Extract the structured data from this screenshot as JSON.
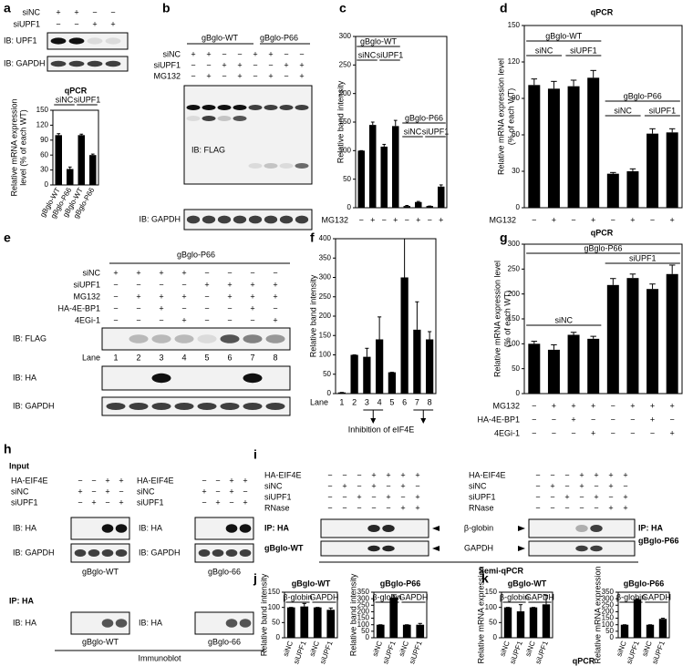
{
  "panel_letters": [
    "a",
    "b",
    "c",
    "d",
    "e",
    "f",
    "g",
    "h",
    "i",
    "j",
    "k"
  ],
  "a": {
    "rows": [
      {
        "label": "siNC",
        "signs": [
          "+",
          "+",
          "−",
          "−"
        ]
      },
      {
        "label": "siUPF1",
        "signs": [
          "−",
          "−",
          "+",
          "+"
        ]
      }
    ],
    "ib": [
      "IB: UPF1",
      "IB: GAPDH"
    ]
  },
  "b": {
    "groups": [
      "gBglo-WT",
      "gBglo-P66"
    ],
    "rows": [
      {
        "label": "siNC",
        "signs": [
          "+",
          "+",
          "−",
          "−",
          "+",
          "+",
          "−",
          "−"
        ]
      },
      {
        "label": "siUPF1",
        "signs": [
          "−",
          "−",
          "+",
          "+",
          "−",
          "−",
          "+",
          "+"
        ]
      },
      {
        "label": "MG132",
        "signs": [
          "−",
          "+",
          "−",
          "+",
          "−",
          "+",
          "−",
          "+"
        ]
      }
    ],
    "ib": [
      "IB: FLAG",
      "IB: GAPDH"
    ]
  },
  "e": {
    "title": "gBglo-P66",
    "rows": [
      {
        "label": "siNC",
        "signs": [
          "+",
          "+",
          "+",
          "+",
          "−",
          "−",
          "−",
          "−"
        ]
      },
      {
        "label": "siUPF1",
        "signs": [
          "−",
          "−",
          "−",
          "−",
          "+",
          "+",
          "+",
          "+"
        ]
      },
      {
        "label": "MG132",
        "signs": [
          "−",
          "+",
          "+",
          "+",
          "−",
          "+",
          "+",
          "+"
        ]
      },
      {
        "label": "HA-4E-BP1",
        "signs": [
          "−",
          "−",
          "+",
          "−",
          "−",
          "−",
          "+",
          "−"
        ]
      },
      {
        "label": "4EGi-1",
        "signs": [
          "−",
          "−",
          "−",
          "+",
          "−",
          "−",
          "−",
          "+"
        ]
      }
    ],
    "lane_label": "Lane",
    "lanes": [
      "1",
      "2",
      "3",
      "4",
      "5",
      "6",
      "7",
      "8"
    ],
    "ib": [
      "IB: FLAG",
      "IB: HA",
      "IB: GAPDH"
    ]
  },
  "h": {
    "input": "Input",
    "tables": [
      {
        "rows": [
          {
            "label": "HA-EIF4E",
            "signs": [
              "−",
              "−",
              "+",
              "+"
            ]
          },
          {
            "label": "siNC",
            "signs": [
              "+",
              "−",
              "+",
              "−"
            ]
          },
          {
            "label": "siUPF1",
            "signs": [
              "−",
              "+",
              "−",
              "+"
            ]
          }
        ]
      },
      {
        "rows": [
          {
            "label": "HA-EIF4E",
            "signs": [
              "−",
              "−",
              "+",
              "+"
            ]
          },
          {
            "label": "siNC",
            "signs": [
              "+",
              "−",
              "+",
              "−"
            ]
          },
          {
            "label": "siUPF1",
            "signs": [
              "−",
              "+",
              "−",
              "+"
            ]
          }
        ]
      }
    ],
    "ib": [
      "IB: HA",
      "IB: GAPDH",
      "IB: HA",
      "IB: GAPDH"
    ],
    "names": [
      "gBglo-WT",
      "gBglo-66"
    ],
    "ip": "IP: HA",
    "ip_ib": [
      "IB: HA",
      "IB: HA"
    ],
    "ip_names": [
      "gBglo-WT",
      "gBglo-66"
    ],
    "method": "Immunoblot"
  },
  "i": {
    "tables": [
      {
        "rows": [
          {
            "label": "HA-EIF4E",
            "signs": [
              "−",
              "−",
              "−",
              "+",
              "+",
              "+",
              "+"
            ]
          },
          {
            "label": "siNC",
            "signs": [
              "−",
              "+",
              "−",
              "+",
              "−",
              "+",
              "−"
            ]
          },
          {
            "label": "siUPF1",
            "signs": [
              "−",
              "−",
              "+",
              "−",
              "+",
              "−",
              "+"
            ]
          },
          {
            "label": "RNase",
            "signs": [
              "−",
              "−",
              "−",
              "−",
              "−",
              "+",
              "+"
            ]
          }
        ]
      },
      {
        "rows": [
          {
            "label": "HA-EIF4E",
            "signs": [
              "−",
              "−",
              "−",
              "+",
              "+",
              "+",
              "+"
            ]
          },
          {
            "label": "siNC",
            "signs": [
              "−",
              "+",
              "−",
              "+",
              "−",
              "+",
              "−"
            ]
          },
          {
            "label": "siUPF1",
            "signs": [
              "−",
              "−",
              "+",
              "−",
              "+",
              "−",
              "+"
            ]
          },
          {
            "label": "RNase",
            "signs": [
              "−",
              "−",
              "−",
              "−",
              "−",
              "+",
              "+"
            ]
          }
        ]
      }
    ],
    "left": [
      "IP: HA",
      "gBglo-WT"
    ],
    "right": [
      "IP: HA",
      "gBglo-P66"
    ],
    "targets": [
      "β-globin",
      "GAPDH"
    ],
    "method": "Semi-qPCR"
  },
  "k_method": "qPCR",
  "chart_data": [
    {
      "type": "bar",
      "title": "qPCR",
      "ylabel": [
        "Relative mRNA expression",
        "level (% of each WT)"
      ],
      "categories": [
        "gBglo-WT",
        "gBglo-P66",
        "gBglo-WT",
        "gBglo-P66"
      ],
      "values": [
        100,
        32,
        100,
        60
      ],
      "errors": [
        3,
        4,
        2,
        2
      ],
      "ylim": [
        0,
        150
      ],
      "yticks": [
        0,
        30,
        60,
        90,
        120,
        150
      ],
      "annotations": [
        "siNC",
        "siUPF1"
      ],
      "color": "#000000"
    },
    {
      "type": "bar",
      "ylabel": "Relative band intensity",
      "xlabel": "MG132",
      "categories": [
        "−",
        "+",
        "−",
        "+",
        "−",
        "+",
        "−",
        "+"
      ],
      "values": [
        100,
        145,
        107,
        143,
        3,
        10,
        3,
        37
      ],
      "errors": [
        0,
        5,
        4,
        10,
        1,
        1,
        0,
        3
      ],
      "ylim": [
        0,
        300
      ],
      "yticks": [
        0,
        50,
        100,
        150,
        200,
        250,
        300
      ],
      "annotations": [
        "gBglo-WT",
        "siNC",
        "siUPF1",
        "gBglo-P66",
        "siNC",
        "siUPF1"
      ],
      "color": "#000000"
    },
    {
      "type": "bar",
      "title": "qPCR",
      "ylabel": [
        "Relative mRNA expression level",
        "(% of each WT)"
      ],
      "xlabel": "MG132",
      "categories": [
        "−",
        "+",
        "−",
        "+",
        "−",
        "+",
        "−",
        "+"
      ],
      "values": [
        101,
        98,
        100,
        107,
        28,
        30,
        61,
        62
      ],
      "errors": [
        5,
        6,
        5,
        6,
        1,
        2,
        4,
        3
      ],
      "ylim": [
        0,
        150
      ],
      "yticks": [
        0,
        30,
        60,
        90,
        120,
        150
      ],
      "annotations": [
        "gBglo-WT",
        "siNC",
        "siUPF1",
        "gBglo-P66",
        "siNC",
        "siUPF1"
      ],
      "color": "#000000"
    },
    {
      "type": "bar",
      "ylabel": "Relative band intensity",
      "xlabel": "Lane",
      "categories": [
        "1",
        "2",
        "3",
        "4",
        "5",
        "6",
        "7",
        "8"
      ],
      "values": [
        3,
        100,
        95,
        140,
        55,
        300,
        165,
        140
      ],
      "errors": [
        0,
        0,
        22,
        58,
        0,
        100,
        72,
        20
      ],
      "ylim": [
        0,
        400
      ],
      "yticks": [
        0,
        50,
        100,
        150,
        200,
        250,
        300,
        350,
        400
      ],
      "notes": [
        "Inhibition of eIF4E"
      ],
      "color": "#000000"
    },
    {
      "type": "bar",
      "title": "qPCR",
      "ylabel": [
        "Relative mRNA expression level",
        "(% of each WT)"
      ],
      "xlabel": "MG132",
      "categories": [
        "−",
        "+",
        "+",
        "+",
        "−",
        "+",
        "+",
        "+"
      ],
      "sign_rows": [
        {
          "label": "HA-4E-BP1",
          "signs": [
            "−",
            "−",
            "+",
            "−",
            "−",
            "−",
            "+",
            "−"
          ]
        },
        {
          "label": "4EGi-1",
          "signs": [
            "−",
            "−",
            "−",
            "+",
            "−",
            "−",
            "−",
            "+"
          ]
        }
      ],
      "values": [
        100,
        88,
        118,
        110,
        218,
        232,
        210,
        240
      ],
      "errors": [
        5,
        10,
        5,
        5,
        13,
        8,
        10,
        18
      ],
      "ylim": [
        0,
        300
      ],
      "yticks": [
        0,
        50,
        100,
        150,
        200,
        250,
        300
      ],
      "annotations": [
        "gBglo-P66",
        "siUPF1",
        "siNC"
      ],
      "color": "#000000"
    },
    {
      "type": "bar",
      "title": "gBglo-WT",
      "ylabel": "Relative band intensity",
      "categories": [
        "siNC",
        "siUPF1",
        "siNC",
        "siUPF1"
      ],
      "values": [
        100,
        103,
        100,
        92
      ],
      "errors": [
        0,
        10,
        0,
        6
      ],
      "ylim": [
        0,
        150
      ],
      "yticks": [
        0,
        50,
        100,
        150
      ],
      "annotations": [
        "β-globin",
        "GAPDH"
      ],
      "color": "#000000"
    },
    {
      "type": "bar",
      "title": "gBglo-P66",
      "ylabel": "Relative band intensity",
      "categories": [
        "siNC",
        "siUPF1",
        "siNC",
        "siUPF1"
      ],
      "values": [
        100,
        310,
        100,
        100
      ],
      "errors": [
        0,
        20,
        0,
        10
      ],
      "ylim": [
        0,
        350
      ],
      "yticks": [
        0,
        50,
        100,
        150,
        200,
        250,
        300,
        350
      ],
      "annotations": [
        "β-globin",
        "GAPDH"
      ],
      "color": "#000000"
    },
    {
      "type": "bar",
      "title": "gBglo-WT",
      "ylabel": "Relative mRNA expression",
      "categories": [
        "siNC",
        "siUPF1",
        "siNC",
        "siUPF1"
      ],
      "values": [
        100,
        87,
        100,
        110
      ],
      "errors": [
        0,
        22,
        0,
        30
      ],
      "ylim": [
        0,
        150
      ],
      "yticks": [
        0,
        50,
        100,
        150
      ],
      "annotations": [
        "β-globin",
        "GAPDH"
      ],
      "color": "#000000"
    },
    {
      "type": "bar",
      "title": "gBglo-P66",
      "ylabel": "Relative mRNA expression",
      "categories": [
        "siNC",
        "siUPF1",
        "siNC",
        "siUPF1"
      ],
      "values": [
        100,
        295,
        100,
        145
      ],
      "errors": [
        0,
        5,
        0,
        5
      ],
      "ylim": [
        0,
        350
      ],
      "yticks": [
        0,
        50,
        100,
        150,
        200,
        250,
        300,
        350
      ],
      "annotations": [
        "β-globin",
        "GAPDH"
      ],
      "color": "#000000"
    }
  ]
}
